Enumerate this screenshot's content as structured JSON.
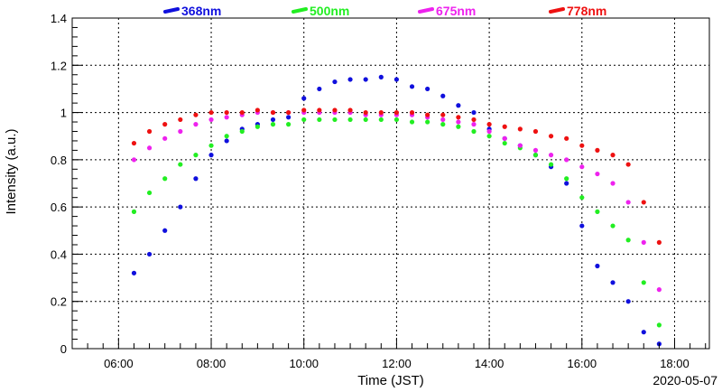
{
  "chart_data": {
    "type": "scatter",
    "xlabel": "Time (JST)",
    "ylabel": "Intensity (a.u.)",
    "date": "2020-05-07",
    "xlim": [
      "05:00",
      "18:45"
    ],
    "ylim": [
      0,
      1.4
    ],
    "x_ticks": [
      "06:00",
      "08:00",
      "10:00",
      "12:00",
      "14:00",
      "16:00",
      "18:00"
    ],
    "y_ticks": [
      "0",
      "0.2",
      "0.4",
      "0.6",
      "0.8",
      "1",
      "1.2",
      "1.4"
    ],
    "grid": true,
    "legend_position": "top",
    "series": [
      {
        "name": "368nm",
        "color": "#1010dd",
        "x": [
          "06:20",
          "06:40",
          "07:00",
          "07:20",
          "07:40",
          "08:00",
          "08:20",
          "08:40",
          "09:00",
          "09:20",
          "09:40",
          "10:00",
          "10:20",
          "10:40",
          "11:00",
          "11:20",
          "11:40",
          "12:00",
          "12:20",
          "12:40",
          "13:00",
          "13:20",
          "13:40",
          "14:00",
          "14:20",
          "14:40",
          "15:00",
          "15:20",
          "15:40",
          "16:00",
          "16:20",
          "16:40",
          "17:00",
          "17:20",
          "17:40"
        ],
        "values": [
          0.32,
          0.4,
          0.5,
          0.6,
          0.72,
          0.82,
          0.88,
          0.93,
          0.95,
          0.97,
          0.98,
          1.06,
          1.1,
          1.13,
          1.14,
          1.14,
          1.15,
          1.14,
          1.11,
          1.1,
          1.07,
          1.03,
          1.0,
          0.93,
          0.89,
          0.86,
          0.82,
          0.77,
          0.7,
          0.52,
          0.35,
          0.28,
          0.2,
          0.07,
          0.02
        ]
      },
      {
        "name": "500nm",
        "color": "#22ee22",
        "x": [
          "06:20",
          "06:40",
          "07:00",
          "07:20",
          "07:40",
          "08:00",
          "08:20",
          "08:40",
          "09:00",
          "09:20",
          "09:40",
          "10:00",
          "10:20",
          "10:40",
          "11:00",
          "11:20",
          "11:40",
          "12:00",
          "12:20",
          "12:40",
          "13:00",
          "13:20",
          "13:40",
          "14:00",
          "14:20",
          "14:40",
          "15:00",
          "15:20",
          "15:40",
          "16:00",
          "16:20",
          "16:40",
          "17:00",
          "17:20",
          "17:40"
        ],
        "values": [
          0.58,
          0.66,
          0.72,
          0.78,
          0.82,
          0.86,
          0.9,
          0.92,
          0.94,
          0.95,
          0.95,
          0.97,
          0.97,
          0.97,
          0.97,
          0.97,
          0.97,
          0.97,
          0.96,
          0.96,
          0.95,
          0.94,
          0.92,
          0.9,
          0.87,
          0.85,
          0.82,
          0.78,
          0.72,
          0.64,
          0.58,
          0.52,
          0.46,
          0.28,
          0.1
        ]
      },
      {
        "name": "675nm",
        "color": "#ee22ee",
        "x": [
          "06:20",
          "06:40",
          "07:00",
          "07:20",
          "07:40",
          "08:00",
          "08:20",
          "08:40",
          "09:00",
          "09:20",
          "09:40",
          "10:00",
          "10:20",
          "10:40",
          "11:00",
          "11:20",
          "11:40",
          "12:00",
          "12:20",
          "12:40",
          "13:00",
          "13:20",
          "13:40",
          "14:00",
          "14:20",
          "14:40",
          "15:00",
          "15:20",
          "15:40",
          "16:00",
          "16:20",
          "16:40",
          "17:00",
          "17:20",
          "17:40"
        ],
        "values": [
          0.8,
          0.85,
          0.89,
          0.92,
          0.95,
          0.97,
          0.98,
          0.99,
          1.0,
          1.0,
          1.0,
          1.0,
          1.0,
          1.0,
          1.0,
          0.99,
          0.99,
          0.99,
          0.99,
          0.98,
          0.97,
          0.96,
          0.95,
          0.92,
          0.89,
          0.86,
          0.84,
          0.82,
          0.8,
          0.77,
          0.74,
          0.7,
          0.62,
          0.45,
          0.25
        ]
      },
      {
        "name": "778nm",
        "color": "#ee1111",
        "x": [
          "06:20",
          "06:40",
          "07:00",
          "07:20",
          "07:40",
          "08:00",
          "08:20",
          "08:40",
          "09:00",
          "09:20",
          "09:40",
          "10:00",
          "10:20",
          "10:40",
          "11:00",
          "11:20",
          "11:40",
          "12:00",
          "12:20",
          "12:40",
          "13:00",
          "13:20",
          "13:40",
          "14:00",
          "14:20",
          "14:40",
          "15:00",
          "15:20",
          "15:40",
          "16:00",
          "16:20",
          "16:40",
          "17:00",
          "17:20",
          "17:40"
        ],
        "values": [
          0.87,
          0.92,
          0.95,
          0.97,
          0.99,
          1.0,
          1.0,
          1.0,
          1.01,
          1.0,
          1.0,
          1.01,
          1.01,
          1.01,
          1.01,
          1.0,
          1.0,
          1.0,
          1.0,
          0.99,
          0.99,
          0.98,
          0.97,
          0.95,
          0.94,
          0.93,
          0.92,
          0.9,
          0.89,
          0.86,
          0.84,
          0.82,
          0.78,
          0.62,
          0.45
        ]
      }
    ]
  }
}
